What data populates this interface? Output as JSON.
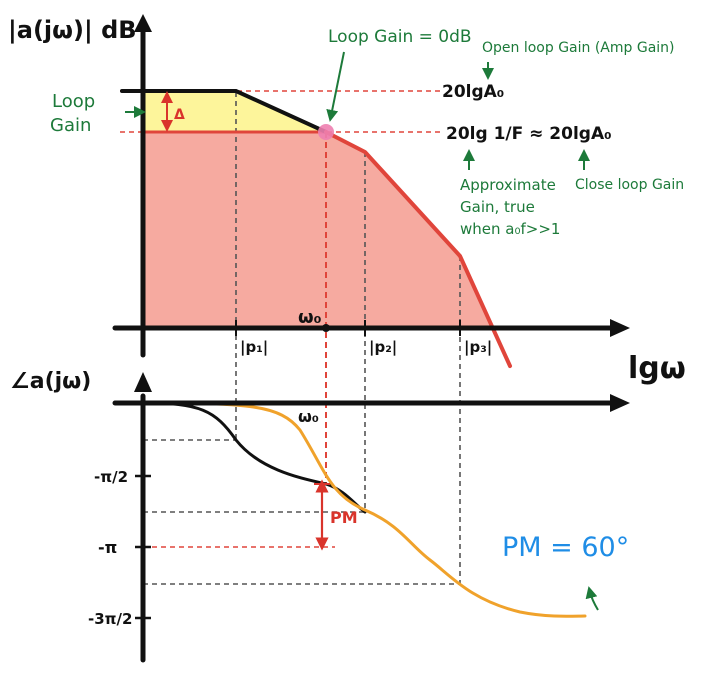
{
  "colors": {
    "axis": "#111111",
    "open_loop": "#111111",
    "closed_loop": "#e0453b",
    "phase_open": "#111111",
    "phase_closed": "#f0a22b",
    "closed_region_fill": "#f6aaa0",
    "loop_gain_fill": "#fdf59b",
    "annotation_green": "#1d7a3a",
    "annotation_red": "#d9342b",
    "pm_value_blue": "#1f8de6",
    "crossover_marker": "#ee7fb0"
  },
  "magnitude_plot": {
    "y_axis_label": "|a(jω)| dB",
    "x_axis_label": "lgω",
    "omega0_label": "ω₀",
    "pole_labels": [
      "|p₁|",
      "|p₂|",
      "|p₃|"
    ],
    "level_open_loop": "20lgA₀",
    "level_closed_loop": "20lg 1/F ≈ 20lgA₀",
    "loop_gain_label_line1": "Loop",
    "loop_gain_label_line2": "Gain",
    "delta_label": "Δ",
    "loop_gain_0db_label": "Loop Gain = 0dB",
    "open_loop_gain_label": "Open loop Gain (Amp Gain)",
    "approx_line1": "Approximate",
    "approx_line2": "Gain, true",
    "approx_line3": "when a₀f>>1",
    "close_loop_gain_label": "Close loop Gain"
  },
  "phase_plot": {
    "y_axis_label": "∠a(jω)",
    "omega0_label": "ω₀",
    "tick_labels": [
      "-π/2",
      "-π",
      "-3π/2"
    ],
    "pm_label": "PM",
    "pm_value": "PM = 60°"
  }
}
